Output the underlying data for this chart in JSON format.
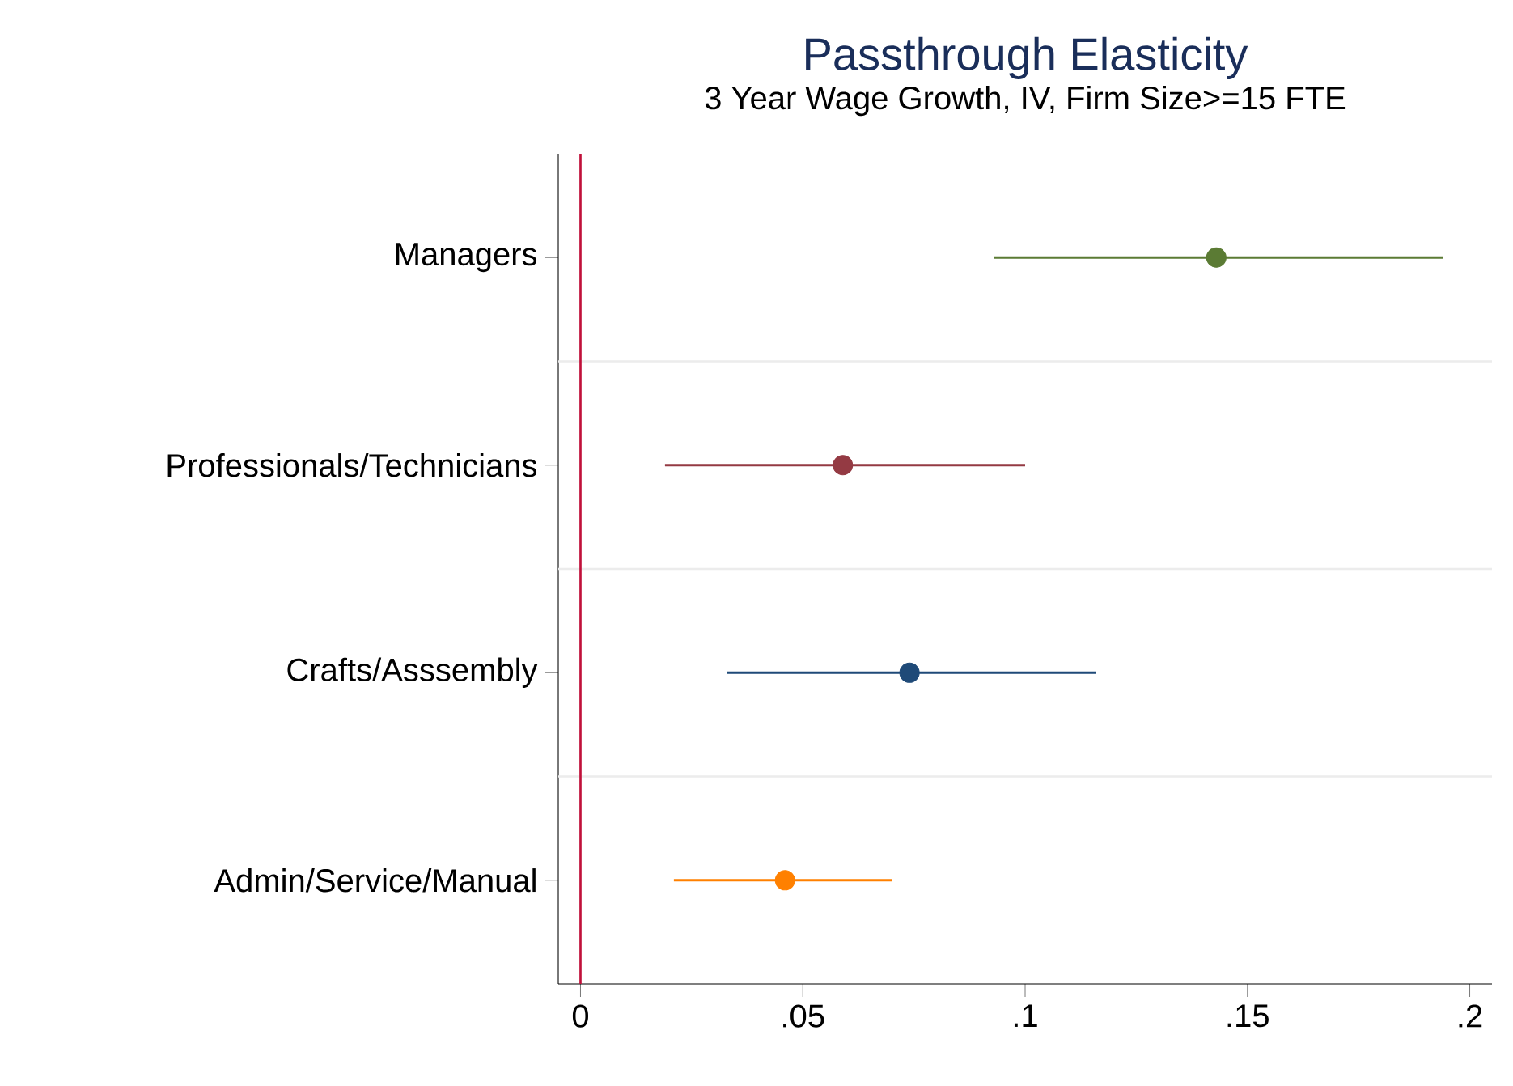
{
  "chart_data": {
    "type": "scatter",
    "orientation": "horizontal",
    "title": "Passthrough Elasticity",
    "subtitle": "3 Year Wage Growth, IV, Firm Size>=15 FTE",
    "categories": [
      "Managers",
      "Professionals/Technicians",
      "Crafts/Asssembly",
      "Admin/Service/Manual"
    ],
    "values": [
      0.143,
      0.059,
      0.074,
      0.046
    ],
    "errors": [
      [
        0.093,
        0.194
      ],
      [
        0.019,
        0.1
      ],
      [
        0.033,
        0.116
      ],
      [
        0.021,
        0.07
      ]
    ],
    "colors": [
      "#5b7b34",
      "#943a43",
      "#1f4a78",
      "#ff8000"
    ],
    "marker": "circle",
    "grid": "y",
    "xlim": [
      -0.005,
      0.205
    ],
    "xticks": [
      {
        "value": 0,
        "label": "0"
      },
      {
        "value": 0.05,
        "label": ".05"
      },
      {
        "value": 0.1,
        "label": ".1"
      },
      {
        "value": 0.15,
        "label": ".15"
      },
      {
        "value": 0.2,
        "label": ".2"
      }
    ],
    "ref_lines": [
      {
        "axis": "x",
        "value": 0,
        "color": "#c0103a"
      }
    ]
  }
}
